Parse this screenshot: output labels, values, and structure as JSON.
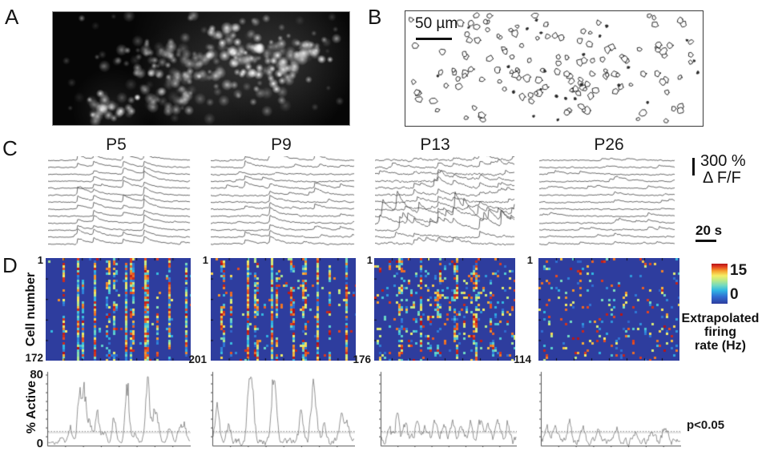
{
  "panels": {
    "a": {
      "label": "A"
    },
    "b": {
      "label": "B",
      "scalebar_label": "50 µm"
    },
    "c": {
      "label": "C",
      "col_headers": [
        "P5",
        "P9",
        "P13",
        "P26"
      ],
      "yscale_value": "300 %",
      "yscale_unit": "Δ F/F",
      "xscale_label": "20 s"
    },
    "d": {
      "label": "D",
      "ylabel": "Cell number",
      "active_ylabel": "% Active",
      "active_ymax": "80",
      "active_ymin": "0",
      "sig_label": "p<0.05",
      "colorbar": {
        "max": "15",
        "min": "0",
        "caption_lines": [
          "Extrapolated",
          "firing",
          "rate (Hz)"
        ]
      }
    }
  },
  "colors": {
    "trace": "#3b3b3b",
    "active_line": "#7a7a7a",
    "axis": "#555555",
    "threshold_dot": "#888888",
    "threshold_solid": "#cccccc",
    "micrograph_bg": "#060606",
    "outline_stroke": "#141414"
  },
  "chart_data": [
    {
      "id": "panel-a-micrograph",
      "type": "image",
      "description": "Fluorescence micrograph, bright labeled cell bodies on dark background",
      "seed": 7,
      "n_cells": 340
    },
    {
      "id": "panel-b-contours",
      "type": "scatter",
      "description": "Outlines of detected cell bodies",
      "seed": 11,
      "n_cells": 200,
      "scalebar_label": "50 µm"
    },
    {
      "id": "panel-c-traces",
      "type": "line",
      "description": "ΔF/F calcium traces per age group",
      "yscalebar": "300 % ΔF/F",
      "xscalebar": "20 s",
      "columns": [
        {
          "age": "P5",
          "n_traces": 13,
          "seed": 21,
          "noise": 0.7,
          "rand_events": 1,
          "rand_amp": 2,
          "events": [
            {
              "t": 0.21,
              "amp": 8,
              "sync": 0.95
            },
            {
              "t": 0.32,
              "amp": 6,
              "sync": 0.85
            },
            {
              "t": 0.53,
              "amp": 7,
              "sync": 0.9
            },
            {
              "t": 0.675,
              "amp": 9,
              "sync": 0.95
            }
          ]
        },
        {
          "age": "P9",
          "n_traces": 13,
          "seed": 22,
          "noise": 0.9,
          "rand_events": 2,
          "rand_amp": 2.5,
          "events": [
            {
              "t": 0.24,
              "amp": 6,
              "sync": 0.7
            },
            {
              "t": 0.41,
              "amp": 8,
              "sync": 0.8
            },
            {
              "t": 0.72,
              "amp": 5,
              "sync": 0.55
            },
            {
              "t": 0.9,
              "amp": 4,
              "sync": 0.35
            }
          ],
          "spike": {
            "trace": 0,
            "t": 0.41,
            "amp": 14
          }
        },
        {
          "age": "P13",
          "n_traces": 13,
          "seed": 23,
          "noise": 1.3,
          "rand_events": 4,
          "rand_amp": 4,
          "busy_rows": [
            8,
            9,
            10
          ],
          "events": [
            {
              "t": 0.28,
              "amp": 5,
              "sync": 0.55
            },
            {
              "t": 0.45,
              "amp": 6,
              "sync": 0.6
            },
            {
              "t": 0.56,
              "amp": 5,
              "sync": 0.5
            },
            {
              "t": 0.75,
              "amp": 6,
              "sync": 0.6
            },
            {
              "t": 0.88,
              "amp": 4,
              "sync": 0.45
            }
          ]
        },
        {
          "age": "P26",
          "n_traces": 13,
          "seed": 24,
          "noise": 0.8,
          "rand_events": 3,
          "rand_amp": 2.2,
          "events": [
            {
              "t": 0.3,
              "amp": 3,
              "sync": 0.25
            },
            {
              "t": 0.55,
              "amp": 3,
              "sync": 0.25
            },
            {
              "t": 0.8,
              "amp": 3,
              "sync": 0.2
            }
          ]
        }
      ]
    },
    {
      "id": "panel-d-heatmaps",
      "type": "heatmap",
      "value_range": [
        0,
        15
      ],
      "colormap": "jet",
      "colormap_stops": [
        {
          "v": 0,
          "c": "#2e3d9e"
        },
        {
          "v": 0.18,
          "c": "#2f6fd3"
        },
        {
          "v": 0.33,
          "c": "#2fb6e3"
        },
        {
          "v": 0.45,
          "c": "#6fd8c3"
        },
        {
          "v": 0.58,
          "c": "#b9e988"
        },
        {
          "v": 0.7,
          "c": "#f5ee66"
        },
        {
          "v": 0.82,
          "c": "#f6a02e"
        },
        {
          "v": 0.92,
          "c": "#e4431f"
        },
        {
          "v": 1,
          "c": "#b51218"
        }
      ],
      "maps": [
        {
          "age": "P5",
          "rows": 172,
          "row_label_top": "1",
          "row_label_bottom": "172",
          "seed": 31,
          "base": 0.012,
          "clump": 0.5,
          "streaks": [
            {
              "t": 0.115,
              "d": 0.3
            },
            {
              "t": 0.21,
              "d": 0.8
            },
            {
              "t": 0.245,
              "d": 0.62
            },
            {
              "t": 0.33,
              "d": 0.75
            },
            {
              "t": 0.415,
              "d": 0.33
            },
            {
              "t": 0.47,
              "d": 0.4
            },
            {
              "t": 0.54,
              "d": 0.7
            },
            {
              "t": 0.585,
              "d": 0.45
            },
            {
              "t": 0.68,
              "d": 0.75
            },
            {
              "t": 0.75,
              "d": 0.4
            },
            {
              "t": 0.84,
              "d": 0.55
            },
            {
              "t": 0.95,
              "d": 0.6
            }
          ]
        },
        {
          "age": "P9",
          "rows": 201,
          "row_label_top": "1",
          "row_label_bottom": "201",
          "seed": 32,
          "base": 0.03,
          "clump": 0.45,
          "streaks": [
            {
              "t": 0.07,
              "d": 0.33
            },
            {
              "t": 0.13,
              "d": 0.3
            },
            {
              "t": 0.245,
              "d": 0.7
            },
            {
              "t": 0.3,
              "d": 0.33
            },
            {
              "t": 0.41,
              "d": 0.85
            },
            {
              "t": 0.445,
              "d": 0.4
            },
            {
              "t": 0.55,
              "d": 0.3
            },
            {
              "t": 0.63,
              "d": 0.33
            },
            {
              "t": 0.72,
              "d": 0.75
            },
            {
              "t": 0.8,
              "d": 0.3
            },
            {
              "t": 0.92,
              "d": 0.45
            }
          ]
        },
        {
          "age": "P13",
          "rows": 176,
          "row_label_top": "1",
          "row_label_bottom": "176",
          "seed": 33,
          "base": 0.1,
          "clump": 0.3,
          "streaks": [
            {
              "t": 0.18,
              "d": 0.22
            },
            {
              "t": 0.32,
              "d": 0.28
            },
            {
              "t": 0.45,
              "d": 0.22
            },
            {
              "t": 0.57,
              "d": 0.28
            },
            {
              "t": 0.7,
              "d": 0.22
            },
            {
              "t": 0.82,
              "d": 0.22
            }
          ]
        },
        {
          "age": "P26",
          "rows": 114,
          "row_label_top": "1",
          "row_label_bottom": "114",
          "seed": 34,
          "base": 0.075,
          "clump": 0.12,
          "streaks": []
        }
      ]
    },
    {
      "id": "panel-d-active",
      "type": "line",
      "ylim": [
        0,
        80
      ],
      "ylabel": "% Active",
      "threshold": 16,
      "threshold_label": "p<0.05",
      "plots": [
        {
          "age": "P5",
          "seed": 41,
          "base": 4,
          "peaks": [
            {
              "t": 0.1,
              "h": 8
            },
            {
              "t": 0.16,
              "h": 18
            },
            {
              "t": 0.225,
              "h": 52
            },
            {
              "t": 0.26,
              "h": 55
            },
            {
              "t": 0.3,
              "h": 20
            },
            {
              "t": 0.35,
              "h": 33
            },
            {
              "t": 0.4,
              "h": 14
            },
            {
              "t": 0.47,
              "h": 28
            },
            {
              "t": 0.565,
              "h": 62
            },
            {
              "t": 0.62,
              "h": 12
            },
            {
              "t": 0.71,
              "h": 70
            },
            {
              "t": 0.755,
              "h": 30
            },
            {
              "t": 0.78,
              "h": 22
            },
            {
              "t": 0.87,
              "h": 18
            },
            {
              "t": 0.935,
              "h": 14
            },
            {
              "t": 0.97,
              "h": 22
            }
          ]
        },
        {
          "age": "P9",
          "seed": 42,
          "base": 7,
          "peaks": [
            {
              "t": 0.03,
              "h": 40
            },
            {
              "t": 0.11,
              "h": 22
            },
            {
              "t": 0.26,
              "h": 62
            },
            {
              "t": 0.285,
              "h": 40
            },
            {
              "t": 0.43,
              "h": 60
            },
            {
              "t": 0.45,
              "h": 30
            },
            {
              "t": 0.63,
              "h": 30
            },
            {
              "t": 0.715,
              "h": 58
            },
            {
              "t": 0.74,
              "h": 25
            },
            {
              "t": 0.8,
              "h": 18
            },
            {
              "t": 0.92,
              "h": 26
            },
            {
              "t": 0.96,
              "h": 20
            }
          ]
        },
        {
          "age": "P13",
          "seed": 43,
          "base": 9,
          "peaks": [
            {
              "t": 0.06,
              "h": 14
            },
            {
              "t": 0.12,
              "h": 26
            },
            {
              "t": 0.18,
              "h": 16
            },
            {
              "t": 0.27,
              "h": 24
            },
            {
              "t": 0.33,
              "h": 18
            },
            {
              "t": 0.4,
              "h": 22
            },
            {
              "t": 0.47,
              "h": 18
            },
            {
              "t": 0.53,
              "h": 22
            },
            {
              "t": 0.6,
              "h": 18
            },
            {
              "t": 0.67,
              "h": 20
            },
            {
              "t": 0.74,
              "h": 24
            },
            {
              "t": 0.8,
              "h": 16
            },
            {
              "t": 0.88,
              "h": 22
            },
            {
              "t": 0.95,
              "h": 18
            }
          ]
        },
        {
          "age": "P26",
          "seed": 44,
          "base": 8,
          "peaks": [
            {
              "t": 0.04,
              "h": 16
            },
            {
              "t": 0.1,
              "h": 20
            },
            {
              "t": 0.2,
              "h": 22
            },
            {
              "t": 0.3,
              "h": 14
            },
            {
              "t": 0.42,
              "h": 12
            },
            {
              "t": 0.55,
              "h": 12
            },
            {
              "t": 0.68,
              "h": 10
            },
            {
              "t": 0.8,
              "h": 12
            },
            {
              "t": 0.9,
              "h": 16
            }
          ]
        }
      ]
    }
  ]
}
